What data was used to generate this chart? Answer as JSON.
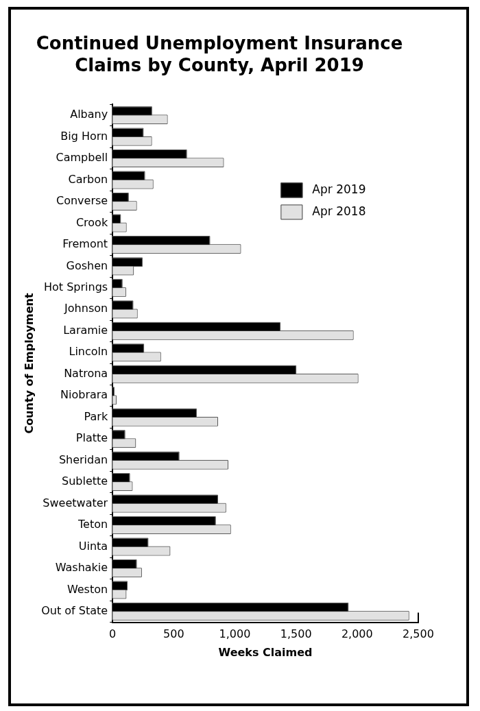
{
  "chart_data": {
    "type": "bar",
    "orientation": "horizontal",
    "title": "Continued Unemployment Insurance Claims by County, April 2019",
    "xlabel": "Weeks Claimed",
    "ylabel": "County of Employment",
    "categories": [
      "Albany",
      "Big Horn",
      "Campbell",
      "Carbon",
      "Converse",
      "Crook",
      "Fremont",
      "Goshen",
      "Hot Springs",
      "Johnson",
      "Laramie",
      "Lincoln",
      "Natrona",
      "Niobrara",
      "Park",
      "Platte",
      "Sheridan",
      "Sublette",
      "Sweetwater",
      "Teton",
      "Uinta",
      "Washakie",
      "Weston",
      "Out of State"
    ],
    "series": [
      {
        "name": "Apr 2019",
        "color": "#000000",
        "values": [
          318,
          248,
          603,
          260,
          127,
          62,
          792,
          240,
          76,
          164,
          1368,
          252,
          1497,
          10,
          683,
          98,
          541,
          137,
          857,
          839,
          287,
          193,
          117,
          1924
        ]
      },
      {
        "name": "Apr 2018",
        "color": "#e1e1e1",
        "values": [
          445,
          316,
          904,
          328,
          193,
          109,
          1044,
          168,
          105,
          199,
          1965,
          390,
          2004,
          27,
          857,
          185,
          941,
          158,
          923,
          962,
          466,
          234,
          107,
          2420
        ]
      }
    ],
    "xlim": [
      0,
      2500
    ],
    "xticks": [
      0,
      500,
      {
        "value": 1000,
        "label": "1,000"
      },
      {
        "value": 1500,
        "label": "1,500"
      },
      {
        "value": 2000,
        "label": "2,000"
      },
      {
        "value": 2500,
        "label": "2,500"
      }
    ],
    "grid": false,
    "legend": "top right"
  }
}
